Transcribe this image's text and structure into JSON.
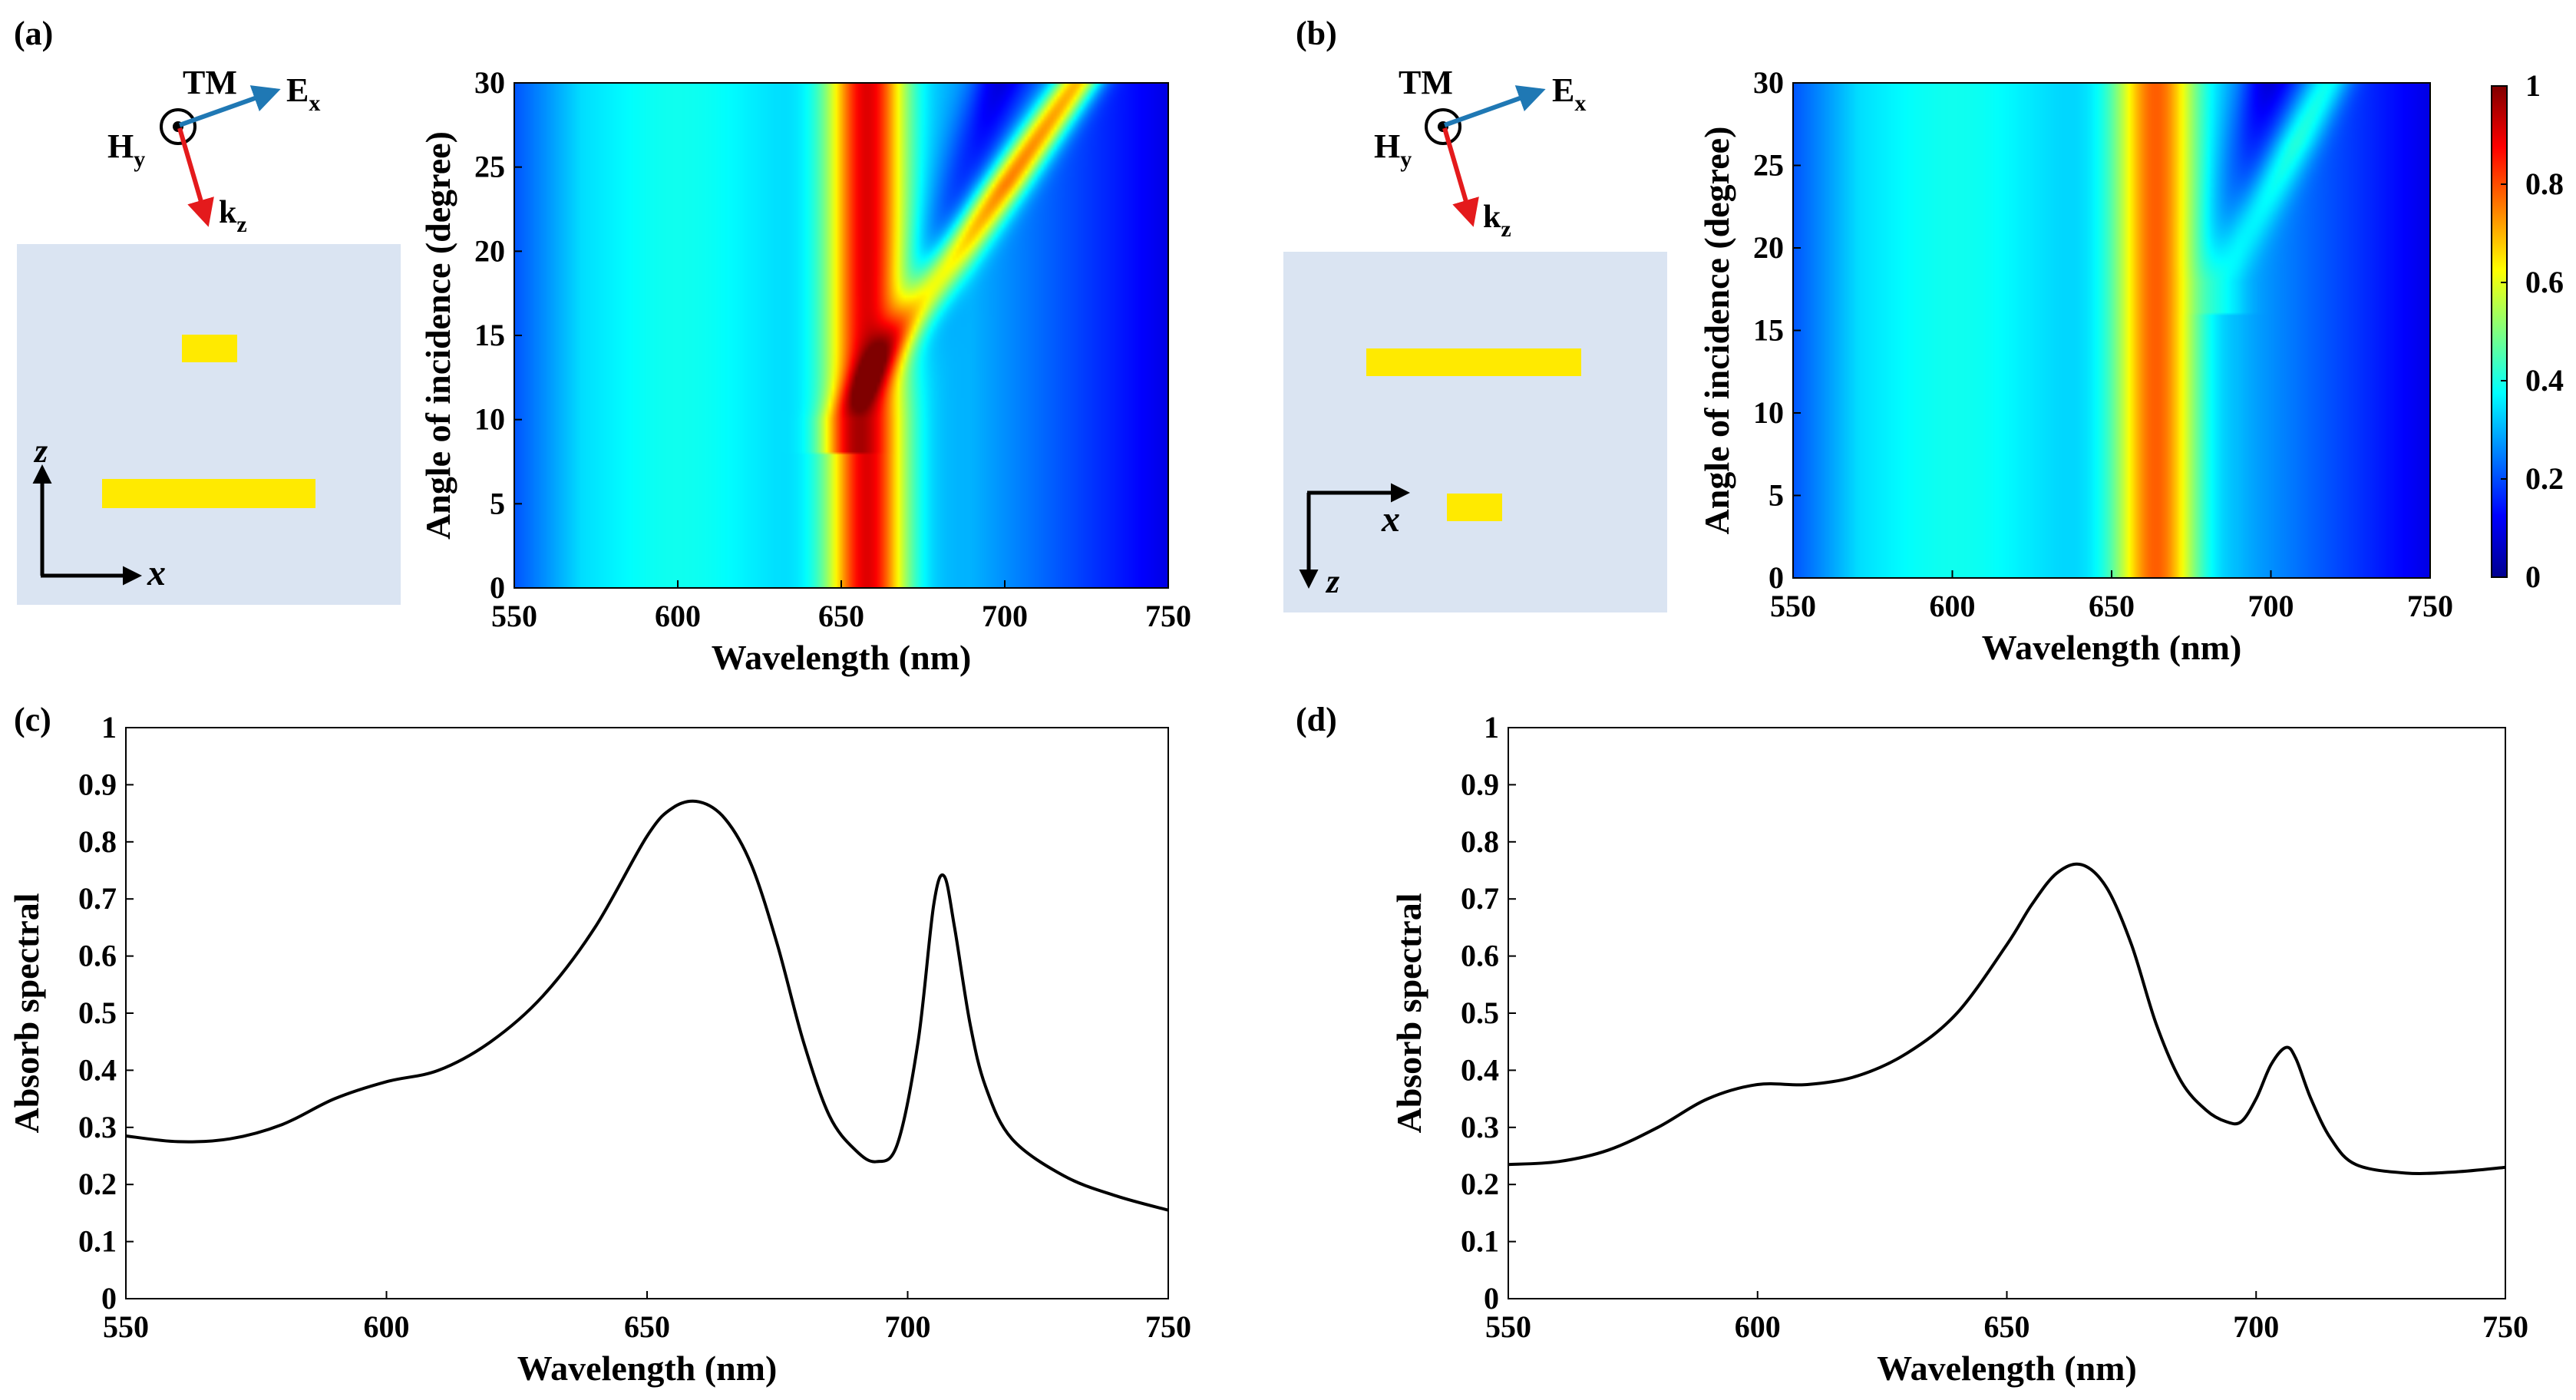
{
  "colors": {
    "background": "#ffffff",
    "inset_bg": "#dae4f2",
    "nanobar": "#ffea00",
    "e_arrow": "#1f78b4",
    "k_arrow": "#e41a1c",
    "curve": "#000000"
  },
  "panels": {
    "a": {
      "label": "(a)",
      "tm": "TM",
      "h": "H",
      "h_sub": "y",
      "e": "E",
      "e_sub": "x",
      "k": "k",
      "k_sub": "z",
      "axis_v": "z",
      "axis_h": "x"
    },
    "b": {
      "label": "(b)",
      "tm": "TM",
      "h": "H",
      "h_sub": "y",
      "e": "E",
      "e_sub": "x",
      "k": "k",
      "k_sub": "z",
      "axis_v": "z",
      "axis_h": "x"
    },
    "c": {
      "label": "(c)"
    },
    "d": {
      "label": "(d)"
    }
  },
  "colorbar": {
    "ticks": [
      "0",
      "0.2",
      "0.4",
      "0.6",
      "0.8",
      "1"
    ]
  },
  "chart_data": [
    {
      "id": "a",
      "type": "heatmap",
      "title": "",
      "xlabel": "Wavelength (nm)",
      "ylabel": "Angle of incidence (degree)",
      "xlim": [
        550,
        750
      ],
      "ylim": [
        0,
        30
      ],
      "xticks": [
        "550",
        "600",
        "650",
        "700",
        "750"
      ],
      "yticks": [
        "0",
        "5",
        "10",
        "15",
        "20",
        "25",
        "30"
      ],
      "value_range": [
        0,
        1
      ],
      "features": [
        {
          "name": "main resonance",
          "center_nm": 658,
          "width_nm": 24,
          "peak": 0.9
        },
        {
          "name": "dispersive mode",
          "from": [
            650,
            10
          ],
          "to": [
            722,
            30
          ],
          "peak": 0.8
        }
      ]
    },
    {
      "id": "b",
      "type": "heatmap",
      "title": "",
      "xlabel": "Wavelength (nm)",
      "ylabel": "Angle of incidence (degree)",
      "xlim": [
        550,
        750
      ],
      "ylim": [
        0,
        30
      ],
      "xticks": [
        "550",
        "600",
        "650",
        "700",
        "750"
      ],
      "yticks": [
        "0",
        "5",
        "10",
        "15",
        "20",
        "25",
        "30"
      ],
      "value_range": [
        0,
        1
      ],
      "features": [
        {
          "name": "main resonance",
          "center_nm": 664,
          "width_nm": 26,
          "peak": 0.78
        },
        {
          "name": "dispersive mode",
          "from": [
            685,
            18
          ],
          "to": [
            718,
            30
          ],
          "peak": 0.48
        }
      ]
    },
    {
      "id": "c",
      "type": "line",
      "title": "",
      "xlabel": "Wavelength (nm)",
      "ylabel": "Absorb spectral",
      "xlim": [
        550,
        750
      ],
      "ylim": [
        0,
        1
      ],
      "xticks": [
        "550",
        "600",
        "650",
        "700",
        "750"
      ],
      "yticks": [
        "0",
        "0.1",
        "0.2",
        "0.3",
        "0.4",
        "0.5",
        "0.6",
        "0.7",
        "0.8",
        "0.9",
        "1"
      ],
      "x": [
        550,
        560,
        570,
        580,
        590,
        600,
        610,
        620,
        630,
        640,
        650,
        655,
        660,
        665,
        670,
        675,
        680,
        685,
        690,
        694,
        698,
        702,
        705,
        707,
        709,
        712,
        715,
        720,
        730,
        740,
        750
      ],
      "y": [
        0.285,
        0.275,
        0.28,
        0.305,
        0.35,
        0.38,
        0.4,
        0.45,
        0.53,
        0.65,
        0.81,
        0.86,
        0.87,
        0.84,
        0.76,
        0.62,
        0.45,
        0.32,
        0.26,
        0.24,
        0.27,
        0.45,
        0.69,
        0.74,
        0.65,
        0.48,
        0.37,
        0.28,
        0.215,
        0.18,
        0.155
      ]
    },
    {
      "id": "d",
      "type": "line",
      "title": "",
      "xlabel": "Wavelength (nm)",
      "ylabel": "Absorb spectral",
      "xlim": [
        550,
        750
      ],
      "ylim": [
        0,
        1
      ],
      "xticks": [
        "550",
        "600",
        "650",
        "700",
        "750"
      ],
      "yticks": [
        "0",
        "0.1",
        "0.2",
        "0.3",
        "0.4",
        "0.5",
        "0.6",
        "0.7",
        "0.8",
        "0.9",
        "1"
      ],
      "x": [
        550,
        560,
        570,
        580,
        590,
        600,
        610,
        620,
        630,
        640,
        650,
        655,
        660,
        665,
        670,
        675,
        680,
        685,
        690,
        694,
        697,
        700,
        703,
        706,
        708,
        711,
        715,
        720,
        730,
        740,
        750
      ],
      "y": [
        0.235,
        0.24,
        0.26,
        0.3,
        0.35,
        0.375,
        0.375,
        0.39,
        0.43,
        0.5,
        0.62,
        0.69,
        0.745,
        0.76,
        0.72,
        0.62,
        0.48,
        0.38,
        0.33,
        0.31,
        0.31,
        0.35,
        0.41,
        0.44,
        0.42,
        0.35,
        0.28,
        0.235,
        0.22,
        0.222,
        0.23
      ]
    }
  ]
}
